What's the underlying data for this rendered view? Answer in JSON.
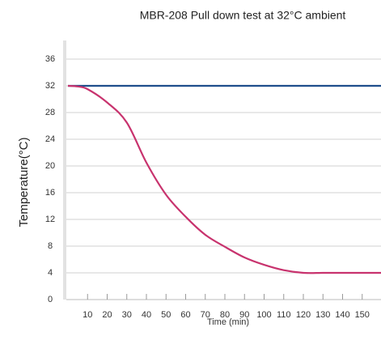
{
  "chart_data": {
    "type": "line",
    "title": "MBR-208 Pull down test at 32°C ambient",
    "xlabel": "Time (min)",
    "ylabel": "Temperature(°C)",
    "x": [
      0,
      5,
      10,
      20,
      30,
      40,
      50,
      60,
      70,
      80,
      90,
      100,
      110,
      120,
      130,
      140,
      150,
      160
    ],
    "series": [
      {
        "color": "#1f4e8c",
        "values": [
          32,
          32,
          32,
          32,
          32,
          32,
          32,
          32,
          32,
          32,
          32,
          32,
          32,
          32,
          32,
          32,
          32,
          32
        ]
      },
      {
        "color": "#c8336e",
        "values": [
          32,
          31.9,
          31.5,
          29.5,
          26.5,
          20.5,
          15.7,
          12.4,
          9.7,
          7.9,
          6.3,
          5.2,
          4.4,
          4,
          4,
          4,
          4,
          4
        ]
      }
    ],
    "xlim": [
      0,
      160
    ],
    "xticks": [
      10,
      20,
      30,
      40,
      50,
      60,
      70,
      80,
      90,
      100,
      110,
      120,
      130,
      140,
      150
    ],
    "ylim": [
      0,
      36
    ],
    "yticks": [
      0,
      4,
      8,
      12,
      16,
      20,
      24,
      28,
      32,
      36
    ],
    "grid": true
  }
}
